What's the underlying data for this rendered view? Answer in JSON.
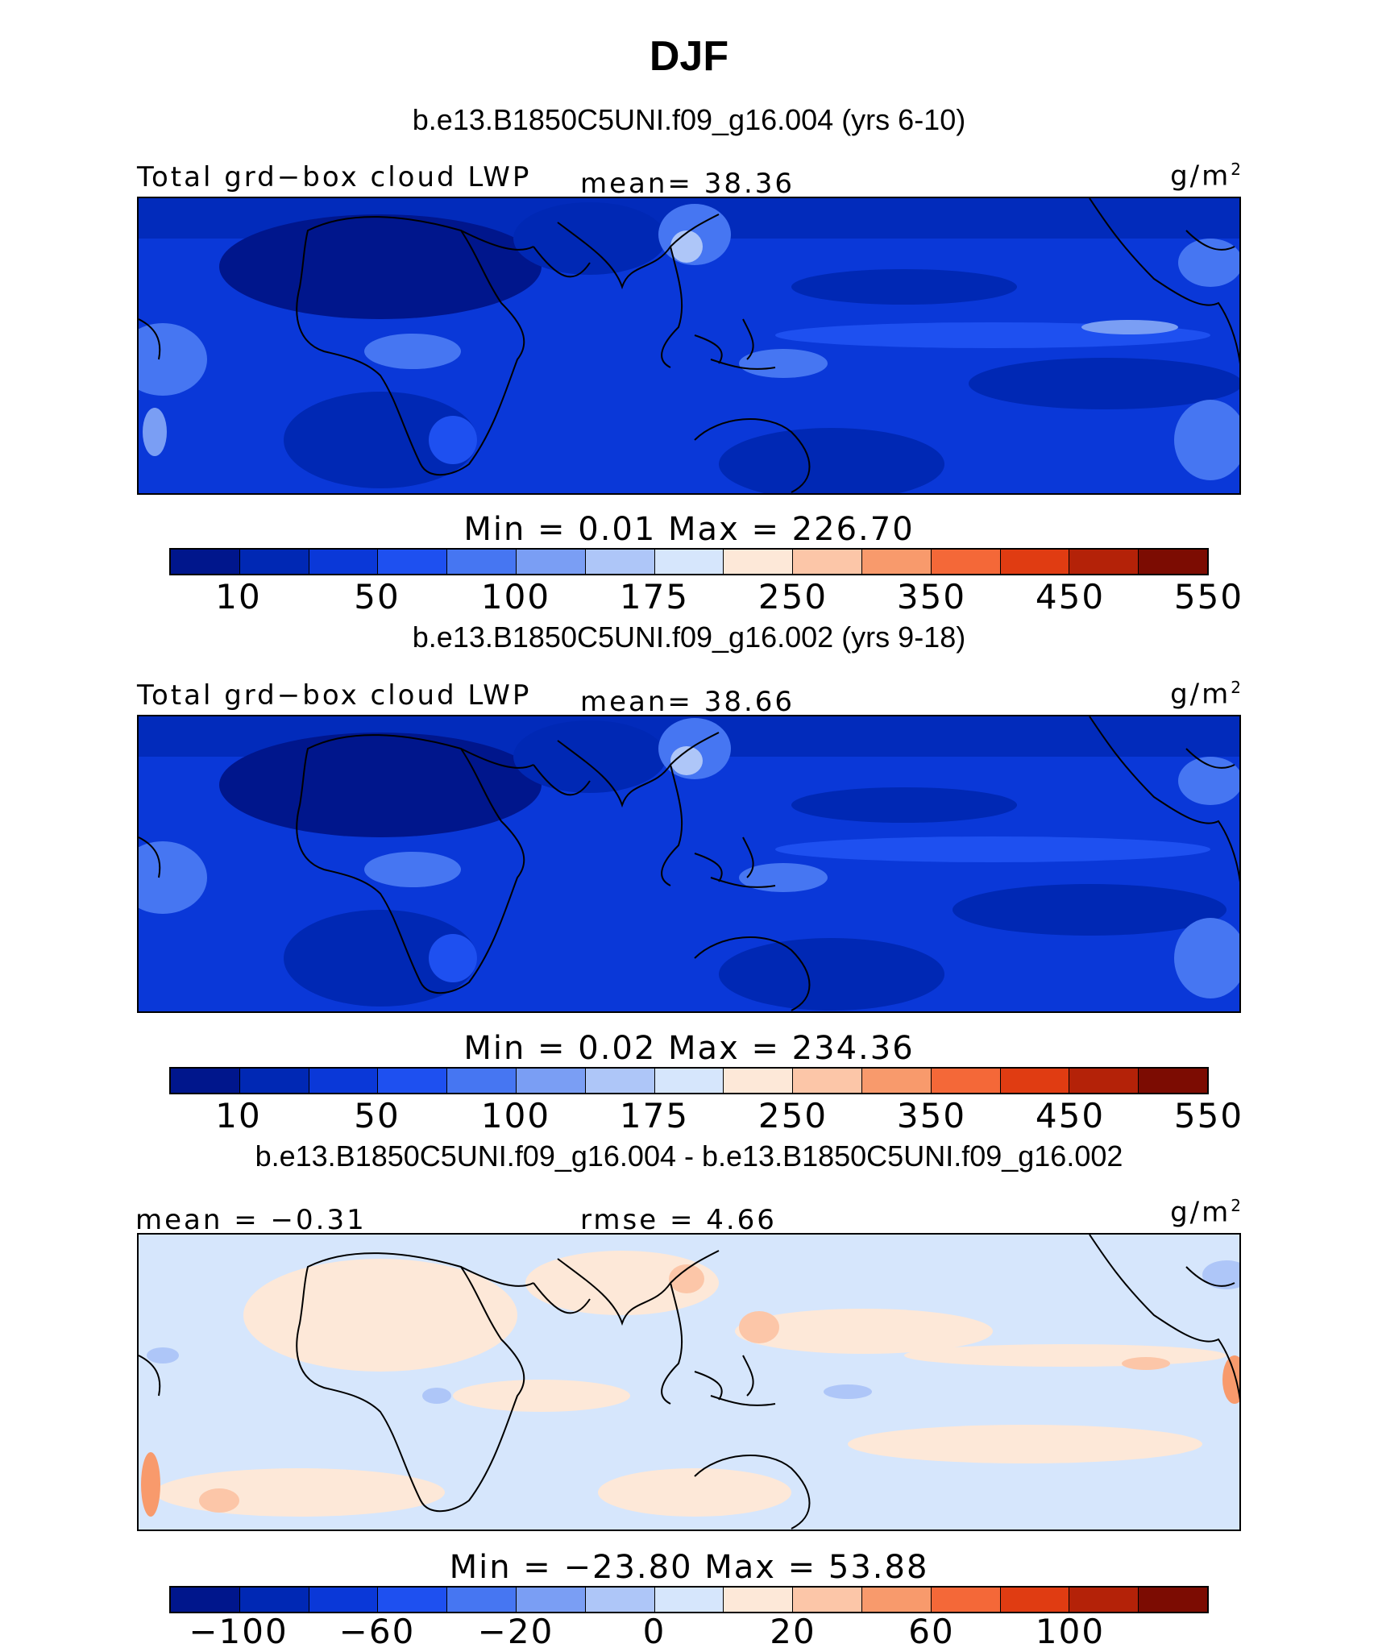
{
  "season": "DJF",
  "colors": {
    "cbar": [
      "#00168c",
      "#0028b4",
      "#0a38d8",
      "#1e50f0",
      "#4676f2",
      "#7a9ef4",
      "#aec6f8",
      "#d6e6fc",
      "#fde8d8",
      "#fcc6a8",
      "#f89a6c",
      "#f46838",
      "#e03c12",
      "#b42208",
      "#7c0c02"
    ]
  },
  "panels": [
    {
      "case_title": "b.e13.B1850C5UNI.f09_g16.004 (yrs 6-10)",
      "var_label": "Total grd−box cloud LWP",
      "stat_label": "mean=  38.36",
      "units": "g/m",
      "units_sup": "2",
      "minmax": "Min  =    0.01  Max  =  226.70",
      "ticks": [
        "10",
        "50",
        "100",
        "175",
        "250",
        "350",
        "450",
        "550"
      ],
      "map_style": "field"
    },
    {
      "case_title": "b.e13.B1850C5UNI.f09_g16.002 (yrs 9-18)",
      "var_label": "Total grd−box cloud LWP",
      "stat_label": "mean=  38.66",
      "units": "g/m",
      "units_sup": "2",
      "minmax": "Min  =    0.02  Max  =  234.36",
      "ticks": [
        "10",
        "50",
        "100",
        "175",
        "250",
        "350",
        "450",
        "550"
      ],
      "map_style": "field"
    },
    {
      "case_title": "b.e13.B1850C5UNI.f09_g16.004 - b.e13.B1850C5UNI.f09_g16.002",
      "var_label": "mean =  −0.31",
      "stat_label": "rmse =   4.66",
      "units": "g/m",
      "units_sup": "2",
      "minmax": "Min  = −23.80  Max  =   53.88",
      "ticks": [
        "−100",
        "−60",
        "−20",
        "0",
        "20",
        "60",
        "100"
      ],
      "map_style": "diff"
    }
  ]
}
